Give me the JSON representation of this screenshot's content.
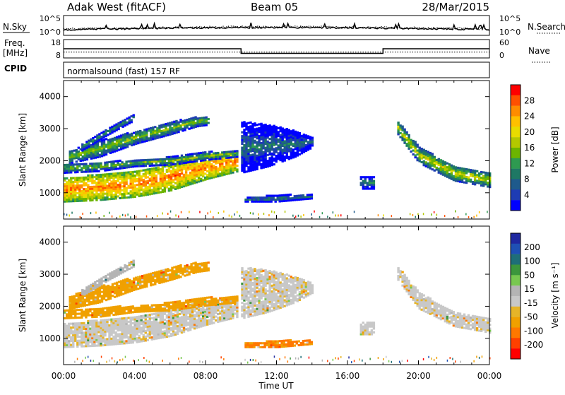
{
  "header": {
    "station": "Adak West (fitACF)",
    "beam": "Beam 05",
    "date": "28/Mar/2015"
  },
  "panels": {
    "noise": {
      "left_label": "N.Sky",
      "left_ticks": [
        "10^5",
        "10^0"
      ],
      "right_label": "N.Search",
      "right_ticks": [
        "10^5",
        "10^0"
      ]
    },
    "freq": {
      "left_label_1": "Freq.",
      "left_label_2": "[MHz]",
      "left_ticks": [
        "18",
        "8"
      ],
      "right_label": "Nave",
      "right_ticks": [
        "60",
        "0"
      ]
    },
    "cpid": {
      "label": "CPID",
      "text": "normalsound (fast) 157 RF"
    }
  },
  "colorbars": {
    "power": {
      "label": "Power [dB]",
      "ticks": [
        "28",
        "24",
        "20",
        "16",
        "12",
        "8",
        "4"
      ],
      "colors": [
        "#ff0000",
        "#ff5000",
        "#ff8c00",
        "#ffc000",
        "#e8dc00",
        "#b4c800",
        "#6cb400",
        "#2e9a50",
        "#1e7864",
        "#1e5a8c",
        "#1e3cb4",
        "#0000ff"
      ]
    },
    "velocity": {
      "label": "Velocity [m s⁻¹]",
      "ticks": [
        "200",
        "100",
        "50",
        "15",
        "-15",
        "-50",
        "-100",
        "-200"
      ],
      "colors": [
        "#1e28a0",
        "#1e50b4",
        "#1e6e78",
        "#3c963c",
        "#78c850",
        "#b4b4b4",
        "#c8c8c8",
        "#e6b428",
        "#f0a000",
        "#ff7800",
        "#ff4000",
        "#ff0000"
      ]
    }
  },
  "chart_data": {
    "type": "heatmap",
    "xlabel": "Time UT",
    "x_ticks": [
      "00:00",
      "04:00",
      "08:00",
      "12:00",
      "16:00",
      "20:00",
      "00:00"
    ],
    "xlim_hours": [
      0,
      24
    ],
    "ylabel": "Slant Range [km]",
    "y_ticks": [
      4000,
      3000,
      2000,
      1000
    ],
    "ylim_km": [
      180,
      4500
    ],
    "freq_mhz_segments": [
      {
        "start_h": 0,
        "end_h": 10,
        "value": 13
      },
      {
        "start_h": 10,
        "end_h": 18,
        "value": 10.5
      },
      {
        "start_h": 18,
        "end_h": 24,
        "value": 13
      }
    ],
    "nave": 19,
    "echo_bands": [
      {
        "t": [
          0,
          2,
          4,
          6,
          8,
          9.8
        ],
        "lo": [
          700,
          750,
          850,
          1050,
          1400,
          1650
        ],
        "hi": [
          1450,
          1550,
          1650,
          1900,
          2150,
          2300
        ],
        "power_db": 26,
        "velocity": -15
      },
      {
        "t": [
          0,
          2,
          4,
          6,
          8,
          9.8
        ],
        "lo": [
          1600,
          1650,
          1800,
          1850,
          2000,
          2100
        ],
        "hi": [
          1900,
          1950,
          2000,
          2100,
          2250,
          2300
        ],
        "power_db": 14,
        "velocity": -50
      },
      {
        "t": [
          0.3,
          2,
          4,
          6,
          7.5,
          8.2
        ],
        "lo": [
          1900,
          2100,
          2500,
          2800,
          3050,
          3100
        ],
        "hi": [
          2300,
          2600,
          2900,
          3200,
          3350,
          3400
        ],
        "power_db": 15,
        "velocity": -50
      },
      {
        "t": [
          1,
          2.5,
          4
        ],
        "lo": [
          2300,
          2800,
          3250
        ],
        "hi": [
          2500,
          3000,
          3450
        ],
        "power_db": 12,
        "velocity": 15
      },
      {
        "t": [
          10,
          11.5,
          13,
          14
        ],
        "lo": [
          1600,
          1800,
          2100,
          2400
        ],
        "hi": [
          3200,
          3100,
          2900,
          2700
        ],
        "power_db": 8,
        "velocity": -15
      },
      {
        "t": [
          10.2,
          12,
          14
        ],
        "lo": [
          700,
          700,
          800
        ],
        "hi": [
          850,
          900,
          950
        ],
        "power_db": 10,
        "velocity": -80
      },
      {
        "t": [
          16.7,
          17.5
        ],
        "lo": [
          1100,
          1100
        ],
        "hi": [
          1500,
          1500
        ],
        "power_db": 9,
        "velocity": -15
      },
      {
        "t": [
          18.8,
          20,
          22,
          24
        ],
        "lo": [
          2800,
          1900,
          1350,
          1150
        ],
        "hi": [
          3200,
          2400,
          1800,
          1600
        ],
        "power_db": 18,
        "velocity": -15
      }
    ]
  }
}
